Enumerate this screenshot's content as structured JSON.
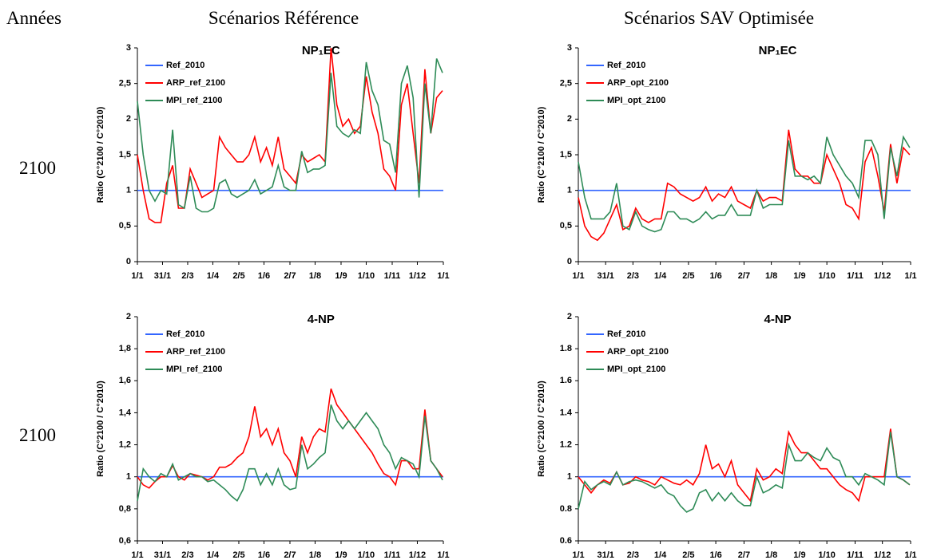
{
  "header": {
    "years_label": "Années",
    "column_1": "Scénarios Référence",
    "column_2": "Scénarios SAV Optimisée"
  },
  "row_labels": [
    "2100",
    "2100"
  ],
  "chart_data": [
    {
      "type": "line",
      "title": "NP₁EC",
      "ylabel": "Ratio (C°2100 / C°2010)",
      "xlim": [
        0,
        365
      ],
      "ylim": [
        0,
        3
      ],
      "xticks": [
        {
          "value": 0,
          "label": "1/1"
        },
        {
          "value": 30,
          "label": "31/1"
        },
        {
          "value": 60,
          "label": "2/3"
        },
        {
          "value": 90,
          "label": "1/4"
        },
        {
          "value": 121,
          "label": "2/5"
        },
        {
          "value": 151,
          "label": "1/6"
        },
        {
          "value": 182,
          "label": "2/7"
        },
        {
          "value": 212,
          "label": "1/8"
        },
        {
          "value": 243,
          "label": "1/9"
        },
        {
          "value": 273,
          "label": "1/10"
        },
        {
          "value": 304,
          "label": "1/11"
        },
        {
          "value": 334,
          "label": "1/12"
        },
        {
          "value": 365,
          "label": "1/1"
        }
      ],
      "yticks": [
        0,
        {
          "value": 0.5,
          "label": "0,5"
        },
        1,
        {
          "value": 1.5,
          "label": "1,5"
        },
        2,
        {
          "value": 2.5,
          "label": "2,5"
        },
        3
      ],
      "x": [
        0,
        7,
        14,
        21,
        28,
        35,
        42,
        49,
        56,
        63,
        70,
        77,
        84,
        91,
        98,
        105,
        112,
        119,
        126,
        133,
        140,
        147,
        154,
        161,
        168,
        175,
        182,
        189,
        196,
        203,
        210,
        217,
        224,
        231,
        238,
        245,
        252,
        259,
        266,
        273,
        280,
        287,
        294,
        301,
        308,
        315,
        322,
        329,
        336,
        343,
        350,
        357,
        364
      ],
      "series": [
        {
          "name": "Ref_2010",
          "color": "#3366ff",
          "x": [
            0,
            365
          ],
          "values": [
            1,
            1
          ]
        },
        {
          "name": "ARP_ref_2100",
          "color": "#ff0000",
          "values": [
            1.5,
            1.0,
            0.6,
            0.55,
            0.55,
            1.1,
            1.35,
            0.75,
            0.75,
            1.3,
            1.1,
            0.9,
            0.95,
            1.0,
            1.75,
            1.6,
            1.5,
            1.4,
            1.4,
            1.5,
            1.75,
            1.4,
            1.6,
            1.35,
            1.75,
            1.3,
            1.2,
            1.1,
            1.5,
            1.4,
            1.45,
            1.5,
            1.4,
            3.0,
            2.2,
            1.9,
            2.0,
            1.8,
            1.9,
            2.6,
            2.1,
            1.8,
            1.3,
            1.2,
            1.0,
            2.2,
            2.5,
            1.8,
            1.1,
            2.7,
            1.8,
            2.3,
            2.4
          ]
        },
        {
          "name": "MPI_ref_2100",
          "color": "#2e8b57",
          "values": [
            2.25,
            1.5,
            1.0,
            0.85,
            1.0,
            0.95,
            1.85,
            0.8,
            0.75,
            1.2,
            0.75,
            0.7,
            0.7,
            0.75,
            1.1,
            1.15,
            0.95,
            0.9,
            0.95,
            1.0,
            1.15,
            0.95,
            1.0,
            1.05,
            1.35,
            1.05,
            1.0,
            1.0,
            1.55,
            1.25,
            1.3,
            1.3,
            1.35,
            2.65,
            1.9,
            1.8,
            1.75,
            1.85,
            1.8,
            2.8,
            2.4,
            2.2,
            1.7,
            1.65,
            1.25,
            2.5,
            2.75,
            2.3,
            0.9,
            2.5,
            1.8,
            2.85,
            2.65
          ]
        }
      ]
    },
    {
      "type": "line",
      "title": "NP₁EC",
      "ylabel": "Ratio (C°2100 / C°2010)",
      "xlim": [
        0,
        365
      ],
      "ylim": [
        0,
        3
      ],
      "xticks": [
        {
          "value": 0,
          "label": "1/1"
        },
        {
          "value": 30,
          "label": "31/1"
        },
        {
          "value": 60,
          "label": "2/3"
        },
        {
          "value": 90,
          "label": "1/4"
        },
        {
          "value": 121,
          "label": "2/5"
        },
        {
          "value": 151,
          "label": "1/6"
        },
        {
          "value": 182,
          "label": "2/7"
        },
        {
          "value": 212,
          "label": "1/8"
        },
        {
          "value": 243,
          "label": "1/9"
        },
        {
          "value": 273,
          "label": "1/10"
        },
        {
          "value": 304,
          "label": "1/11"
        },
        {
          "value": 334,
          "label": "1/12"
        },
        {
          "value": 365,
          "label": "1/1"
        }
      ],
      "yticks": [
        0,
        {
          "value": 0.5,
          "label": "0,5"
        },
        1,
        {
          "value": 1.5,
          "label": "1,5"
        },
        2,
        {
          "value": 2.5,
          "label": "2,5"
        },
        3
      ],
      "x": [
        0,
        7,
        14,
        21,
        28,
        35,
        42,
        49,
        56,
        63,
        70,
        77,
        84,
        91,
        98,
        105,
        112,
        119,
        126,
        133,
        140,
        147,
        154,
        161,
        168,
        175,
        182,
        189,
        196,
        203,
        210,
        217,
        224,
        231,
        238,
        245,
        252,
        259,
        266,
        273,
        280,
        287,
        294,
        301,
        308,
        315,
        322,
        329,
        336,
        343,
        350,
        357,
        364
      ],
      "series": [
        {
          "name": "Ref_2010",
          "color": "#3366ff",
          "x": [
            0,
            365
          ],
          "values": [
            1,
            1
          ]
        },
        {
          "name": "ARP_opt_2100",
          "color": "#ff0000",
          "values": [
            0.9,
            0.5,
            0.35,
            0.3,
            0.4,
            0.6,
            0.8,
            0.45,
            0.5,
            0.75,
            0.6,
            0.55,
            0.6,
            0.6,
            1.1,
            1.05,
            0.95,
            0.9,
            0.85,
            0.9,
            1.05,
            0.85,
            0.95,
            0.9,
            1.05,
            0.85,
            0.8,
            0.75,
            1.0,
            0.85,
            0.9,
            0.9,
            0.85,
            1.85,
            1.3,
            1.2,
            1.2,
            1.1,
            1.1,
            1.5,
            1.3,
            1.1,
            0.8,
            0.75,
            0.6,
            1.4,
            1.6,
            1.2,
            0.7,
            1.65,
            1.1,
            1.6,
            1.5
          ]
        },
        {
          "name": "MPI_opt_2100",
          "color": "#2e8b57",
          "values": [
            1.4,
            0.9,
            0.6,
            0.6,
            0.6,
            0.7,
            1.1,
            0.5,
            0.45,
            0.7,
            0.5,
            0.45,
            0.42,
            0.45,
            0.7,
            0.7,
            0.6,
            0.6,
            0.55,
            0.6,
            0.7,
            0.6,
            0.65,
            0.65,
            0.8,
            0.65,
            0.65,
            0.65,
            1.0,
            0.75,
            0.8,
            0.8,
            0.8,
            1.7,
            1.2,
            1.2,
            1.15,
            1.2,
            1.1,
            1.75,
            1.5,
            1.35,
            1.2,
            1.1,
            0.9,
            1.7,
            1.7,
            1.5,
            0.6,
            1.6,
            1.2,
            1.75,
            1.6
          ]
        }
      ]
    },
    {
      "type": "line",
      "title": "4-NP",
      "ylabel": "Ratio (C°2100 / C°2010)",
      "xlim": [
        0,
        365
      ],
      "ylim": [
        0.6,
        2
      ],
      "xticks": [
        {
          "value": 0,
          "label": "1/1"
        },
        {
          "value": 30,
          "label": "31/1"
        },
        {
          "value": 60,
          "label": "2/3"
        },
        {
          "value": 90,
          "label": "1/4"
        },
        {
          "value": 121,
          "label": "2/5"
        },
        {
          "value": 151,
          "label": "1/6"
        },
        {
          "value": 182,
          "label": "2/7"
        },
        {
          "value": 212,
          "label": "1/8"
        },
        {
          "value": 243,
          "label": "1/9"
        },
        {
          "value": 273,
          "label": "1/10"
        },
        {
          "value": 304,
          "label": "1/11"
        },
        {
          "value": 334,
          "label": "1/12"
        },
        {
          "value": 365,
          "label": "1/1"
        }
      ],
      "yticks": [
        {
          "value": 0.6,
          "label": "0,6"
        },
        {
          "value": 0.8,
          "label": "0,8"
        },
        1,
        {
          "value": 1.2,
          "label": "1,2"
        },
        {
          "value": 1.4,
          "label": "1,4"
        },
        {
          "value": 1.6,
          "label": "1,6"
        },
        {
          "value": 1.8,
          "label": "1,8"
        },
        2
      ],
      "x": [
        0,
        7,
        14,
        21,
        28,
        35,
        42,
        49,
        56,
        63,
        70,
        77,
        84,
        91,
        98,
        105,
        112,
        119,
        126,
        133,
        140,
        147,
        154,
        161,
        168,
        175,
        182,
        189,
        196,
        203,
        210,
        217,
        224,
        231,
        238,
        245,
        252,
        259,
        266,
        273,
        280,
        287,
        294,
        301,
        308,
        315,
        322,
        329,
        336,
        343,
        350,
        357,
        364
      ],
      "series": [
        {
          "name": "Ref_2010",
          "color": "#3366ff",
          "x": [
            0,
            365
          ],
          "values": [
            1,
            1
          ]
        },
        {
          "name": "ARP_ref_2100",
          "color": "#ff0000",
          "values": [
            1.0,
            0.95,
            0.93,
            0.97,
            1.0,
            1.0,
            1.07,
            1.0,
            0.98,
            1.02,
            1.01,
            1.0,
            0.98,
            1.0,
            1.06,
            1.06,
            1.08,
            1.12,
            1.15,
            1.25,
            1.44,
            1.25,
            1.3,
            1.2,
            1.3,
            1.15,
            1.1,
            1.0,
            1.25,
            1.15,
            1.25,
            1.3,
            1.28,
            1.55,
            1.45,
            1.4,
            1.35,
            1.3,
            1.25,
            1.2,
            1.15,
            1.08,
            1.02,
            1.0,
            0.95,
            1.1,
            1.1,
            1.05,
            1.05,
            1.42,
            1.1,
            1.05,
            1.0
          ]
        },
        {
          "name": "MPI_ref_2100",
          "color": "#2e8b57",
          "values": [
            0.85,
            1.05,
            1.0,
            0.97,
            1.02,
            1.0,
            1.08,
            0.98,
            1.0,
            1.02,
            1.0,
            1.0,
            0.97,
            0.98,
            0.95,
            0.92,
            0.88,
            0.85,
            0.92,
            1.05,
            1.05,
            0.95,
            1.02,
            0.95,
            1.05,
            0.95,
            0.92,
            0.93,
            1.2,
            1.05,
            1.08,
            1.12,
            1.15,
            1.45,
            1.35,
            1.3,
            1.35,
            1.3,
            1.35,
            1.4,
            1.35,
            1.3,
            1.2,
            1.15,
            1.05,
            1.12,
            1.1,
            1.08,
            1.0,
            1.38,
            1.1,
            1.05,
            0.98
          ]
        }
      ]
    },
    {
      "type": "line",
      "title": "4-NP",
      "ylabel": "Ratio (C°2100 / C°2010)",
      "xlim": [
        0,
        365
      ],
      "ylim": [
        0.6,
        2
      ],
      "xticks": [
        {
          "value": 0,
          "label": "1/1"
        },
        {
          "value": 30,
          "label": "31/1"
        },
        {
          "value": 60,
          "label": "2/3"
        },
        {
          "value": 90,
          "label": "1/4"
        },
        {
          "value": 121,
          "label": "2/5"
        },
        {
          "value": 151,
          "label": "1/6"
        },
        {
          "value": 182,
          "label": "2/7"
        },
        {
          "value": 212,
          "label": "1/8"
        },
        {
          "value": 243,
          "label": "1/9"
        },
        {
          "value": 273,
          "label": "1/10"
        },
        {
          "value": 304,
          "label": "1/11"
        },
        {
          "value": 334,
          "label": "1/12"
        },
        {
          "value": 365,
          "label": "1/1"
        }
      ],
      "yticks": [
        0.6,
        0.8,
        1,
        1.2,
        1.4,
        1.6,
        1.8,
        2
      ],
      "x": [
        0,
        7,
        14,
        21,
        28,
        35,
        42,
        49,
        56,
        63,
        70,
        77,
        84,
        91,
        98,
        105,
        112,
        119,
        126,
        133,
        140,
        147,
        154,
        161,
        168,
        175,
        182,
        189,
        196,
        203,
        210,
        217,
        224,
        231,
        238,
        245,
        252,
        259,
        266,
        273,
        280,
        287,
        294,
        301,
        308,
        315,
        322,
        329,
        336,
        343,
        350,
        357,
        364
      ],
      "series": [
        {
          "name": "Ref_2010",
          "color": "#3366ff",
          "x": [
            0,
            365
          ],
          "values": [
            1,
            1
          ]
        },
        {
          "name": "ARP_opt_2100",
          "color": "#ff0000",
          "values": [
            1.0,
            0.95,
            0.9,
            0.95,
            0.98,
            0.96,
            1.03,
            0.95,
            0.96,
            1.0,
            0.98,
            0.97,
            0.95,
            1.0,
            0.98,
            0.96,
            0.95,
            0.98,
            0.95,
            1.02,
            1.2,
            1.05,
            1.08,
            1.0,
            1.1,
            0.95,
            0.9,
            0.85,
            1.05,
            0.98,
            1.0,
            1.05,
            1.02,
            1.28,
            1.2,
            1.15,
            1.15,
            1.1,
            1.05,
            1.05,
            1.0,
            0.95,
            0.92,
            0.9,
            0.85,
            1.0,
            1.0,
            1.0,
            1.0,
            1.3,
            1.0,
            0.98,
            0.95
          ]
        },
        {
          "name": "MPI_opt_2100",
          "color": "#2e8b57",
          "values": [
            0.8,
            0.97,
            0.92,
            0.95,
            0.97,
            0.95,
            1.03,
            0.95,
            0.97,
            0.98,
            0.97,
            0.95,
            0.93,
            0.95,
            0.9,
            0.88,
            0.82,
            0.78,
            0.8,
            0.9,
            0.92,
            0.85,
            0.9,
            0.85,
            0.9,
            0.85,
            0.82,
            0.82,
            1.0,
            0.9,
            0.92,
            0.95,
            0.93,
            1.2,
            1.1,
            1.1,
            1.15,
            1.12,
            1.1,
            1.18,
            1.12,
            1.1,
            1.0,
            1.0,
            0.95,
            1.02,
            1.0,
            0.98,
            0.95,
            1.28,
            1.0,
            0.98,
            0.95
          ]
        }
      ]
    }
  ]
}
